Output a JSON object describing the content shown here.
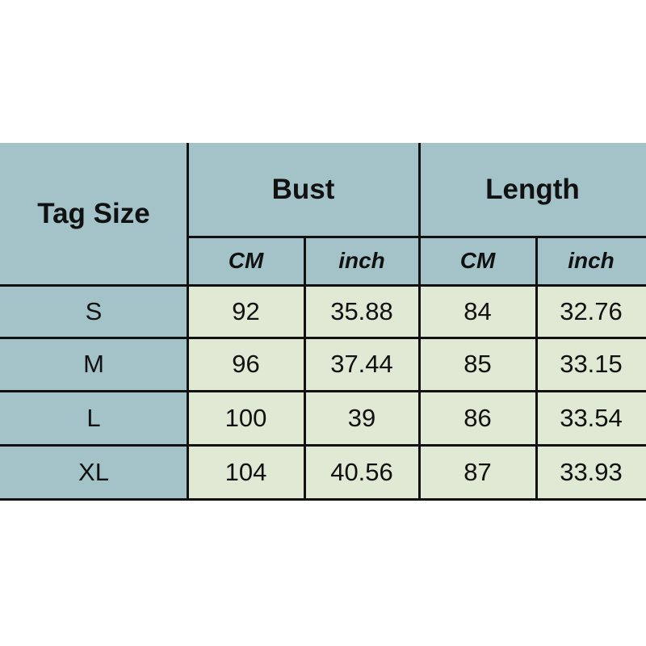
{
  "header": {
    "tag_size": "Tag Size",
    "bust": "Bust",
    "length": "Length",
    "units": [
      "CM",
      "inch",
      "CM",
      "inch"
    ]
  },
  "rows": [
    {
      "size": "S",
      "bust_cm": "92",
      "bust_inch": "35.88",
      "length_cm": "84",
      "length_inch": "32.76"
    },
    {
      "size": "M",
      "bust_cm": "96",
      "bust_inch": "37.44",
      "length_cm": "85",
      "length_inch": "33.15"
    },
    {
      "size": "L",
      "bust_cm": "100",
      "bust_inch": "39",
      "length_cm": "86",
      "length_inch": "33.54"
    },
    {
      "size": "XL",
      "bust_cm": "104",
      "bust_inch": "40.56",
      "length_cm": "87",
      "length_inch": "33.93"
    }
  ],
  "colors": {
    "header_bg": "#a3c3c9",
    "body_bg": "#dfe9d3",
    "border": "#111111"
  }
}
